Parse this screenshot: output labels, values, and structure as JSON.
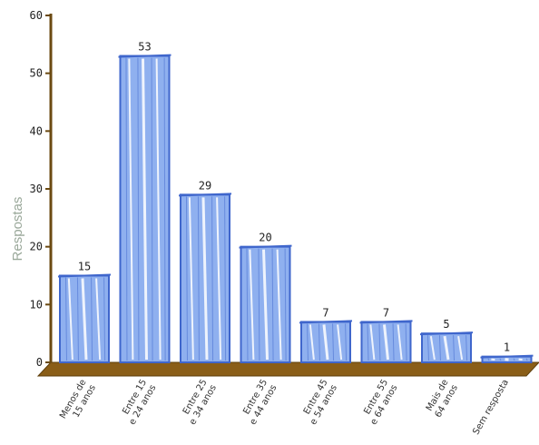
{
  "chart_data": {
    "type": "bar",
    "ylabel": "Respostas",
    "xlabel": "",
    "ylim": [
      0,
      60
    ],
    "yticks": [
      0,
      10,
      20,
      30,
      40,
      50,
      60
    ],
    "grid": false,
    "legend": "none",
    "categories": [
      [
        "Menos de",
        "15 anos"
      ],
      [
        "Entre 15",
        "e 24 anos"
      ],
      [
        "Entre 25",
        "e 34 anos"
      ],
      [
        "Entre 35",
        "e 44 anos"
      ],
      [
        "Entre 45",
        "e 54 anos"
      ],
      [
        "Entre 55",
        "e 64 anos"
      ],
      [
        "Mais de",
        "64 anos"
      ],
      [
        "Sem resposta"
      ]
    ],
    "values": [
      15,
      53,
      29,
      20,
      7,
      7,
      5,
      1
    ],
    "colors": {
      "bar_fill": "#8fb0ef",
      "bar_stroke": "#3f66cc",
      "bar_stripe": "#ffffff",
      "axis": "#6b4a12",
      "floor": "#8a5e18"
    }
  }
}
